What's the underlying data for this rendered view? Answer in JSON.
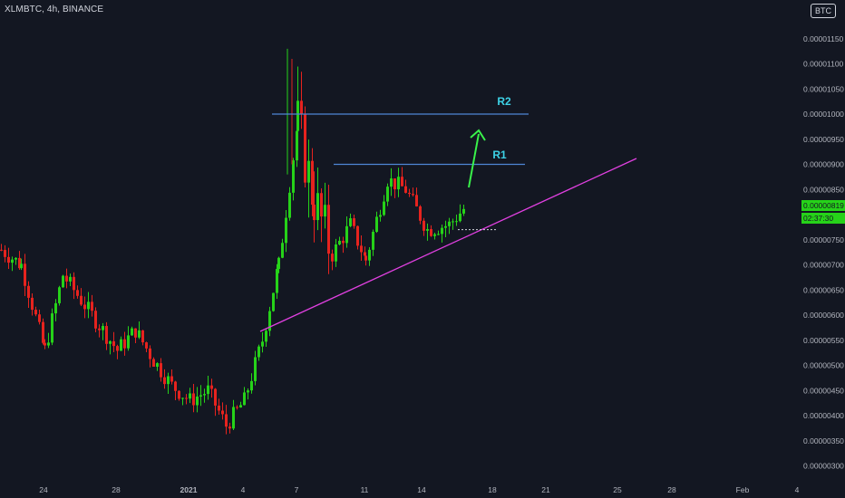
{
  "header": {
    "symbol_line": "XLMBTC, 4h, BINANCE"
  },
  "currency_badge": "BTC",
  "price_now": "0.00000819",
  "countdown": "02:37:30",
  "price_axis_ticks": [
    "0.00001150",
    "0.00001100",
    "0.00001050",
    "0.00001000",
    "0.00000950",
    "0.00000900",
    "0.00000850",
    "0.00000750",
    "0.00000700",
    "0.00000650",
    "0.00000600",
    "0.00000550",
    "0.00000500",
    "0.00000450",
    "0.00000400",
    "0.00000350",
    "0.00000300"
  ],
  "time_axis_ticks": [
    "24",
    "28",
    "2021",
    "4",
    "7",
    "11",
    "14",
    "18",
    "21",
    "25",
    "28",
    "Feb",
    "4"
  ],
  "annotations": {
    "r1_label": "R1",
    "r2_label": "R2",
    "r1_level": 9e-06,
    "r2_level": 1e-05
  },
  "colors": {
    "background": "#131722",
    "up_candle": "#26d219",
    "down_candle": "#e6231e",
    "resistance_line": "#4f86d6",
    "trend_line": "#e040e0",
    "arrow": "#39f24a",
    "label_text": "#3dd2e6",
    "axis_text": "#b2b5be"
  },
  "chart_data": {
    "type": "candlestick",
    "symbol": "XLMBTC",
    "timeframe": "4h",
    "exchange": "BINANCE",
    "ylim": [
      2.9e-06,
      1.22e-05
    ],
    "y_axis_position": "right",
    "grid": false,
    "close_path": [
      [
        "Dec 22",
        7.3e-06
      ],
      [
        "Dec 23",
        7e-06
      ],
      [
        "Dec 24",
        5.3e-06
      ],
      [
        "Dec 25",
        6.8e-06
      ],
      [
        "Dec 26",
        6.3e-06
      ],
      [
        "Dec 27",
        5.8e-06
      ],
      [
        "Dec 28",
        5.3e-06
      ],
      [
        "Dec 29",
        5.7e-06
      ],
      [
        "Dec 30",
        5.1e-06
      ],
      [
        "Dec 31",
        4.6e-06
      ],
      [
        "Jan 1",
        4.3e-06
      ],
      [
        "Jan 2",
        4.5e-06
      ],
      [
        "Jan 3",
        3.8e-06
      ],
      [
        "Jan 4",
        4.3e-06
      ],
      [
        "Jan 5",
        5.5e-06
      ],
      [
        "Jan 6",
        7e-06
      ],
      [
        "Jan 7",
        9.8e-06
      ],
      [
        "Jan 8",
        8.3e-06
      ],
      [
        "Jan 9",
        7.2e-06
      ],
      [
        "Jan 10",
        7.8e-06
      ],
      [
        "Jan 11",
        7.1e-06
      ],
      [
        "Jan 12",
        8.7e-06
      ],
      [
        "Jan 13",
        8.5e-06
      ],
      [
        "Jan 14",
        7.7e-06
      ],
      [
        "Jan 15",
        7.8e-06
      ],
      [
        "Jan 16",
        8.19e-06
      ]
    ],
    "support_dotted_level": 7.7e-06
  }
}
